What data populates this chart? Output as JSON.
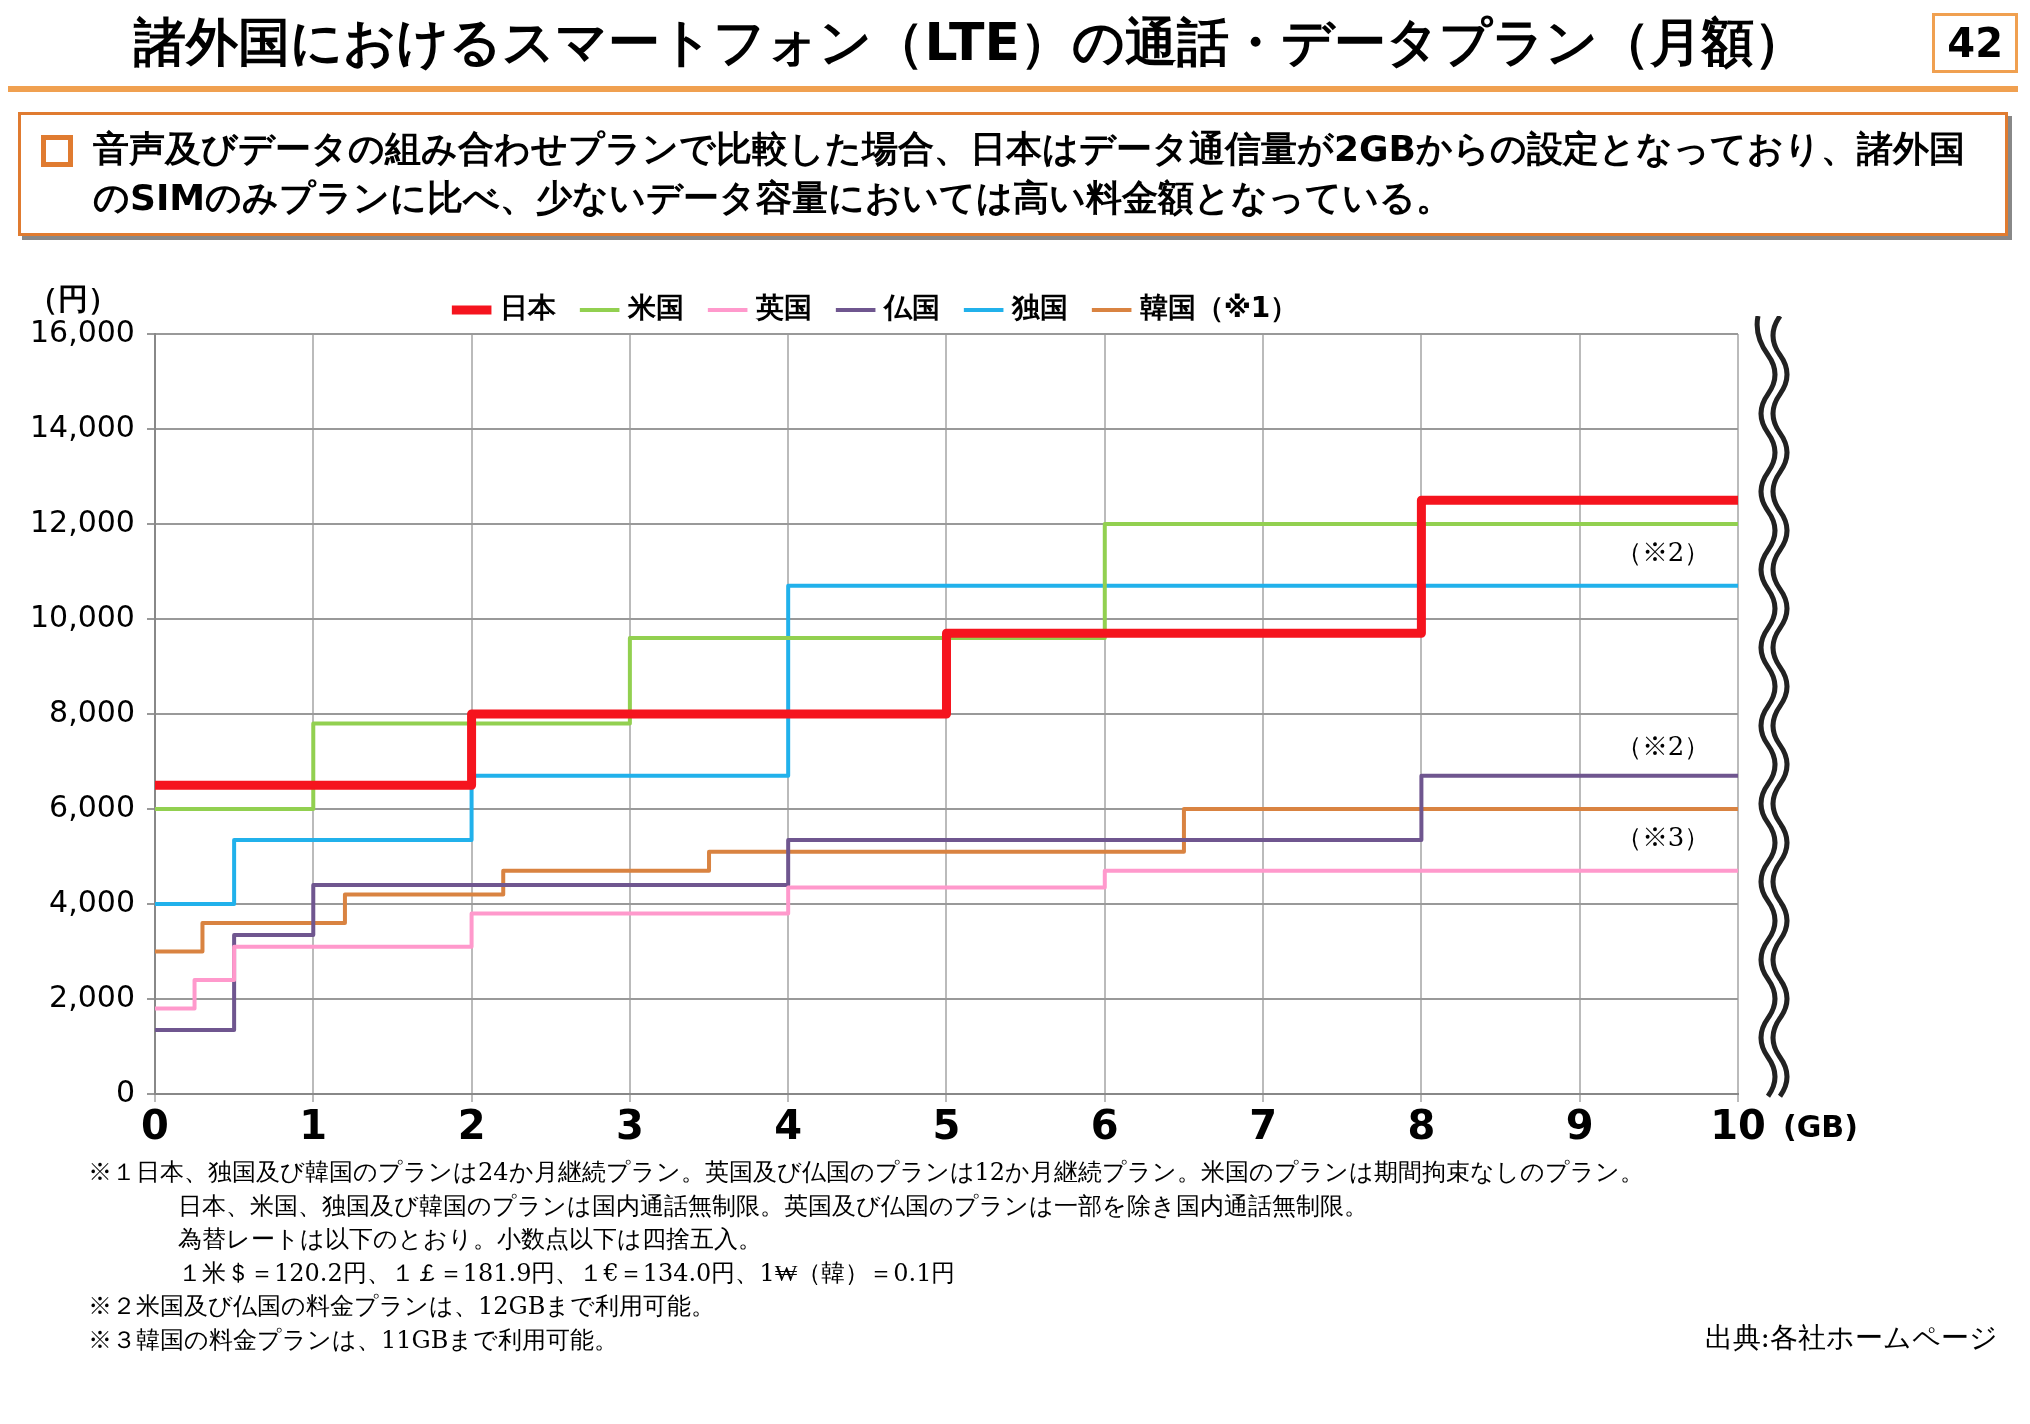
{
  "chart_data": {
    "type": "step",
    "title": "諸外国におけるスマートフォン（LTE）の通話・データプラン（月額）",
    "subtitle": "音声及びデータの組み合わせプランで比較した場合、日本はデータ通信量が2GBからの設定となっており、諸外国のSIMのみプランに比べ、少ないデータ容量においては高い料金額となっている。",
    "xlabel": "(GB)",
    "ylabel": "（円）",
    "xlim": [
      0,
      10
    ],
    "xticks": [
      0,
      1,
      2,
      3,
      4,
      5,
      6,
      7,
      8,
      9,
      10
    ],
    "ylim": [
      0,
      16000
    ],
    "yticks": [
      {
        "value": 0,
        "label": "0"
      },
      {
        "value": 2000,
        "label": "2,000"
      },
      {
        "value": 4000,
        "label": "4,000"
      },
      {
        "value": 6000,
        "label": "6,000"
      },
      {
        "value": 8000,
        "label": "8,000"
      },
      {
        "value": 10000,
        "label": "10,000"
      },
      {
        "value": 12000,
        "label": "12,000"
      },
      {
        "value": 14000,
        "label": "14,000"
      },
      {
        "value": 16000,
        "label": "16,000"
      }
    ],
    "grid": true,
    "legend": "top",
    "marker": "none",
    "series": [
      {
        "name": "日本",
        "color": "#f5141e",
        "x": [
          0,
          2,
          5,
          8,
          10
        ],
        "values": [
          6500,
          8000,
          9700,
          12500,
          12500
        ]
      },
      {
        "name": "米国",
        "color": "#92d050",
        "x": [
          0,
          1,
          3,
          6,
          10
        ],
        "values": [
          6000,
          7800,
          9600,
          12000,
          12000
        ]
      },
      {
        "name": "英国",
        "color": "#ff99cc",
        "x": [
          0,
          0.25,
          0.5,
          2,
          4,
          6,
          10
        ],
        "values": [
          1800,
          2400,
          3100,
          3800,
          4350,
          4700,
          4700
        ]
      },
      {
        "name": "仏国",
        "color": "#6f568f",
        "x": [
          0,
          0.5,
          1,
          4,
          8,
          10
        ],
        "values": [
          1350,
          3350,
          4400,
          5350,
          6700,
          6700
        ]
      },
      {
        "name": "独国",
        "color": "#21b1eb",
        "x": [
          0,
          0.5,
          2,
          4,
          10
        ],
        "values": [
          4000,
          5350,
          6700,
          10700,
          10700
        ]
      },
      {
        "name": "韓国（※1）",
        "color": "#d98341",
        "x": [
          0,
          0.3,
          1.2,
          2.2,
          3.5,
          6.5,
          10
        ],
        "values": [
          3000,
          3600,
          4200,
          4700,
          5100,
          6000,
          6000
        ]
      }
    ],
    "annotations": [
      "（※2）",
      "（※2）",
      "（※3）",
      "42",
      "※１日本、独国及び韓国のプランは24か月継続プラン。英国及び仏国のプランは12か月継続プラン。米国のプランは期間拘束なしのプラン。",
      "日本、米国、独国及び韓国のプランは国内通話無制限。英国及び仏国のプランは一部を除き国内通話無制限。",
      "為替レートは以下のとおり。小数点以下は四捨五入。",
      "１米＄＝120.2円、１￡＝181.9円、１€＝134.0円、1₩（韓）＝0.1円",
      "※２米国及び仏国の料金プランは、12GBまで利用可能。",
      "※３韓国の料金プランは、11GBまで利用可能。",
      "出典:各社ホームページ"
    ]
  }
}
